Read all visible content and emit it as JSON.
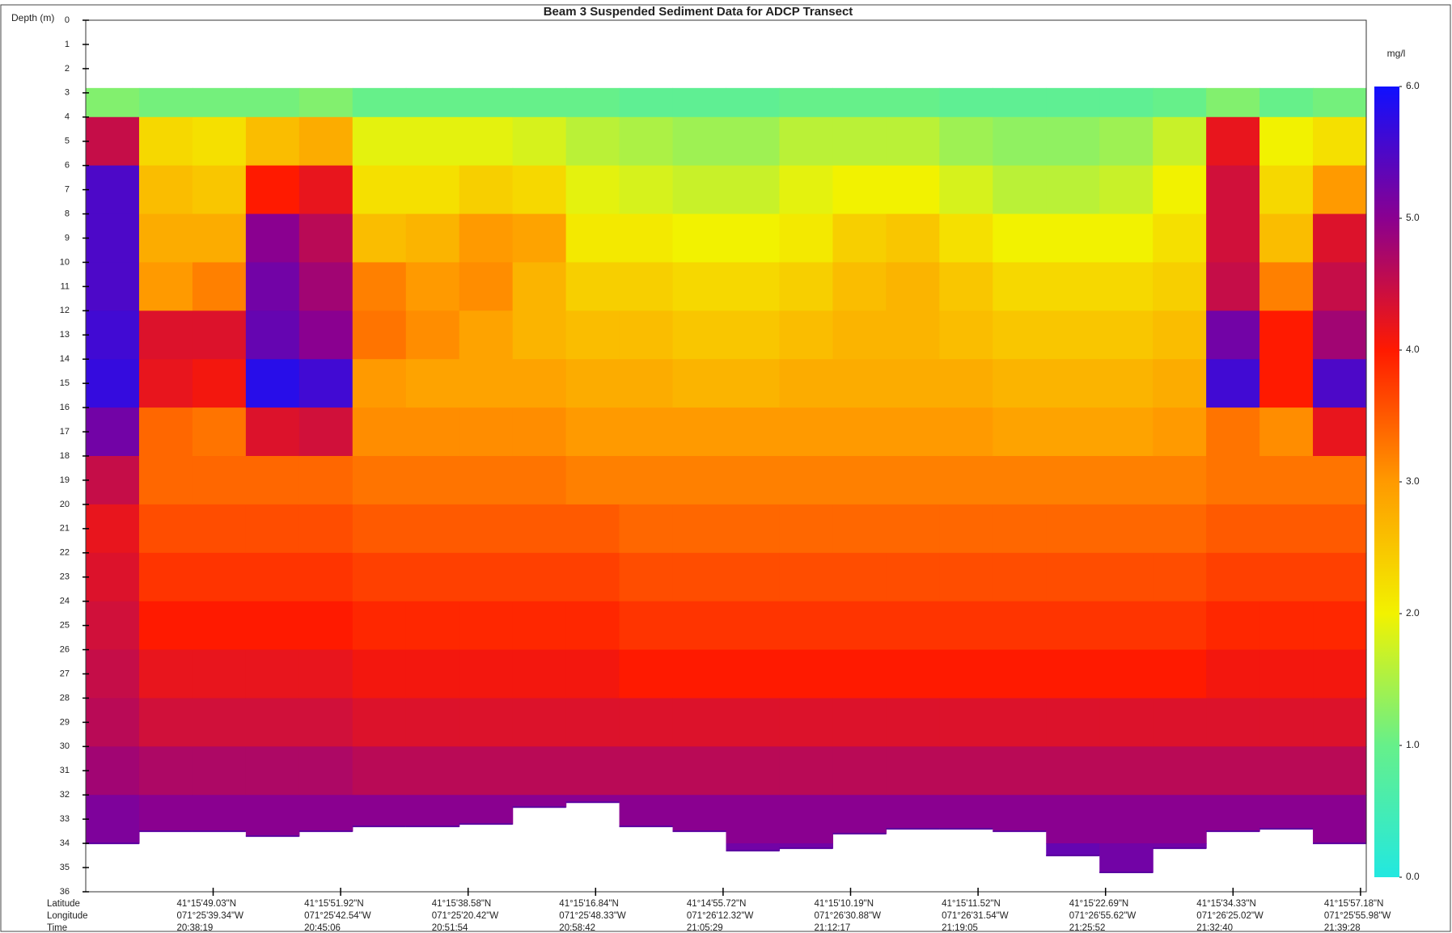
{
  "chart_data": {
    "type": "heatmap",
    "title": "Beam 3 Suspended Sediment Data for ADCP Transect",
    "y_label": "Depth (m)",
    "colorbar_label": "mg/l",
    "y_inverted": true,
    "ylim": [
      0,
      36
    ],
    "yticks": [
      0,
      1,
      2,
      3,
      4,
      5,
      6,
      7,
      8,
      9,
      10,
      11,
      12,
      13,
      14,
      15,
      16,
      17,
      18,
      19,
      20,
      21,
      22,
      23,
      24,
      25,
      26,
      27,
      28,
      29,
      30,
      31,
      32,
      33,
      34,
      35,
      36
    ],
    "zlim": [
      0,
      6
    ],
    "zticks": [
      {
        "value": 0,
        "label": "0.0"
      },
      {
        "value": 1,
        "label": "1.0"
      },
      {
        "value": 2,
        "label": "2.0"
      },
      {
        "value": 3,
        "label": "3.0"
      },
      {
        "value": 4,
        "label": "4.0"
      },
      {
        "value": 5,
        "label": "5.0"
      },
      {
        "value": 6,
        "label": "6.0"
      }
    ],
    "colorscale": [
      "#22e8e0",
      "#66f08a",
      "#f2f200",
      "#ff9a00",
      "#ff1a00",
      "#8a0090",
      "#1010ff"
    ],
    "x_row_labels": [
      "Latitude",
      "Longitude",
      "Time"
    ],
    "x_ticks": [
      {
        "latitude": "41°15'49.03\"N",
        "longitude": "071°25'39.34\"W",
        "time": "20:38:19"
      },
      {
        "latitude": "41°15'51.92\"N",
        "longitude": "071°25'42.54\"W",
        "time": "20:45:06"
      },
      {
        "latitude": "41°15'38.58\"N",
        "longitude": "071°25'20.42\"W",
        "time": "20:51:54"
      },
      {
        "latitude": "41°15'16.84\"N",
        "longitude": "071°25'48.33\"W",
        "time": "20:58:42"
      },
      {
        "latitude": "41°14'55.72\"N",
        "longitude": "071°26'12.32\"W",
        "time": "21:05:29"
      },
      {
        "latitude": "41°15'10.19\"N",
        "longitude": "071°26'30.88\"W",
        "time": "21:12:17"
      },
      {
        "latitude": "41°15'11.52\"N",
        "longitude": "071°26'31.54\"W",
        "time": "21:19:05"
      },
      {
        "latitude": "41°15'22.69\"N",
        "longitude": "071°26'55.62\"W",
        "time": "21:25:52"
      },
      {
        "latitude": "41°15'34.33\"N",
        "longitude": "071°26'25.02\"W",
        "time": "21:32:40"
      },
      {
        "latitude": "41°15'57.18\"N",
        "longitude": "071°25'55.98\"W",
        "time": "21:39:28"
      }
    ],
    "depth_bins": [
      2.8,
      4,
      6,
      8,
      10,
      12,
      14,
      16,
      18,
      20,
      22,
      24,
      26,
      28,
      30,
      32,
      34,
      36
    ],
    "bottom_depth": [
      34.0,
      33.5,
      33.5,
      33.7,
      33.5,
      33.3,
      33.3,
      33.2,
      32.5,
      32.3,
      33.3,
      33.5,
      34.3,
      34.2,
      33.6,
      33.4,
      33.4,
      33.5,
      34.5,
      35.2,
      34.2,
      33.5,
      33.4,
      34.0
    ],
    "values": [
      [
        1.2,
        4.5,
        5.5,
        5.5,
        5.5,
        5.6,
        5.7,
        5.2,
        4.5,
        4.2,
        4.3,
        4.4,
        4.5,
        4.6,
        4.8,
        5.1,
        5.3
      ],
      [
        1.1,
        2.3,
        2.6,
        2.8,
        3.0,
        4.3,
        4.2,
        3.4,
        3.4,
        3.6,
        3.8,
        4.0,
        4.2,
        4.4,
        4.7,
        5.0,
        5.2
      ],
      [
        1.1,
        2.2,
        2.5,
        2.8,
        3.2,
        4.3,
        4.1,
        3.3,
        3.4,
        3.6,
        3.8,
        4.0,
        4.2,
        4.4,
        4.7,
        5.0,
        5.2
      ],
      [
        1.1,
        2.6,
        4.0,
        5.0,
        5.2,
        5.3,
        5.8,
        4.3,
        3.4,
        3.6,
        3.8,
        4.0,
        4.2,
        4.4,
        4.7,
        5.0,
        5.2
      ],
      [
        1.2,
        2.8,
        4.2,
        4.6,
        4.8,
        5.0,
        5.6,
        4.4,
        3.4,
        3.6,
        3.8,
        4.0,
        4.2,
        4.4,
        4.7,
        5.0,
        5.2
      ],
      [
        1.0,
        1.9,
        2.2,
        2.6,
        3.2,
        3.3,
        3.0,
        3.1,
        3.3,
        3.5,
        3.7,
        3.9,
        4.1,
        4.3,
        4.6,
        5.0,
        5.2
      ],
      [
        1.0,
        1.9,
        2.2,
        2.7,
        3.0,
        3.1,
        2.9,
        3.1,
        3.3,
        3.5,
        3.7,
        3.9,
        4.1,
        4.3,
        4.6,
        5.0,
        5.2
      ],
      [
        1.0,
        1.9,
        2.4,
        3.0,
        3.1,
        2.9,
        2.9,
        3.1,
        3.3,
        3.5,
        3.7,
        3.9,
        4.1,
        4.3,
        4.6,
        5.0,
        5.2
      ],
      [
        1.0,
        1.8,
        2.3,
        2.9,
        2.7,
        2.7,
        2.9,
        3.1,
        3.3,
        3.5,
        3.7,
        3.9,
        4.1,
        4.3,
        4.6,
        5.0,
        5.2
      ],
      [
        1.0,
        1.6,
        1.9,
        2.1,
        2.4,
        2.6,
        2.8,
        3.0,
        3.2,
        3.5,
        3.7,
        3.9,
        4.1,
        4.3,
        4.6,
        5.0,
        5.2
      ],
      [
        0.9,
        1.5,
        1.8,
        2.1,
        2.4,
        2.6,
        2.8,
        3.0,
        3.2,
        3.4,
        3.6,
        3.8,
        4.0,
        4.3,
        4.6,
        5.0,
        5.2
      ],
      [
        0.9,
        1.4,
        1.7,
        2.0,
        2.3,
        2.5,
        2.7,
        3.0,
        3.2,
        3.4,
        3.6,
        3.8,
        4.0,
        4.3,
        4.6,
        5.0,
        5.2
      ],
      [
        0.9,
        1.4,
        1.7,
        2.0,
        2.3,
        2.5,
        2.7,
        3.0,
        3.2,
        3.4,
        3.6,
        3.8,
        4.0,
        4.3,
        4.6,
        5.0,
        5.2
      ],
      [
        1.0,
        1.6,
        1.9,
        2.1,
        2.4,
        2.6,
        2.8,
        3.0,
        3.2,
        3.4,
        3.6,
        3.8,
        4.0,
        4.3,
        4.6,
        5.0,
        5.2
      ],
      [
        1.0,
        1.6,
        2.0,
        2.4,
        2.6,
        2.7,
        2.8,
        3.0,
        3.2,
        3.4,
        3.6,
        3.8,
        4.0,
        4.3,
        4.6,
        5.0,
        5.2
      ],
      [
        1.0,
        1.6,
        2.0,
        2.5,
        2.7,
        2.7,
        2.8,
        3.0,
        3.2,
        3.4,
        3.6,
        3.8,
        4.0,
        4.3,
        4.6,
        5.0,
        5.2
      ],
      [
        0.9,
        1.4,
        1.8,
        2.2,
        2.5,
        2.6,
        2.8,
        3.0,
        3.2,
        3.4,
        3.6,
        3.8,
        4.0,
        4.3,
        4.6,
        5.0,
        5.2
      ],
      [
        0.9,
        1.3,
        1.6,
        2.0,
        2.3,
        2.5,
        2.7,
        2.9,
        3.2,
        3.4,
        3.6,
        3.8,
        4.0,
        4.3,
        4.6,
        5.0,
        5.3
      ],
      [
        0.9,
        1.3,
        1.6,
        2.0,
        2.3,
        2.5,
        2.7,
        2.9,
        3.2,
        3.4,
        3.6,
        3.8,
        4.0,
        4.3,
        4.6,
        5.0,
        5.3
      ],
      [
        0.9,
        1.4,
        1.7,
        2.0,
        2.3,
        2.5,
        2.7,
        2.9,
        3.2,
        3.4,
        3.6,
        3.8,
        4.0,
        4.3,
        4.6,
        5.0,
        5.2
      ],
      [
        1.0,
        1.7,
        2.0,
        2.2,
        2.4,
        2.6,
        2.8,
        3.0,
        3.2,
        3.4,
        3.6,
        3.8,
        4.0,
        4.3,
        4.6,
        5.0,
        5.2
      ],
      [
        1.2,
        4.2,
        4.4,
        4.4,
        4.5,
        5.2,
        5.6,
        3.3,
        3.3,
        3.5,
        3.7,
        3.9,
        4.1,
        4.3,
        4.6,
        5.0,
        5.2
      ],
      [
        1.0,
        2.0,
        2.3,
        2.6,
        3.2,
        4.0,
        4.0,
        3.1,
        3.3,
        3.5,
        3.7,
        3.9,
        4.1,
        4.3,
        4.6,
        5.0,
        5.2
      ],
      [
        1.1,
        2.2,
        3.0,
        4.3,
        4.5,
        4.8,
        5.5,
        4.2,
        3.3,
        3.5,
        3.7,
        3.9,
        4.1,
        4.3,
        4.6,
        5.0,
        5.2
      ]
    ]
  }
}
